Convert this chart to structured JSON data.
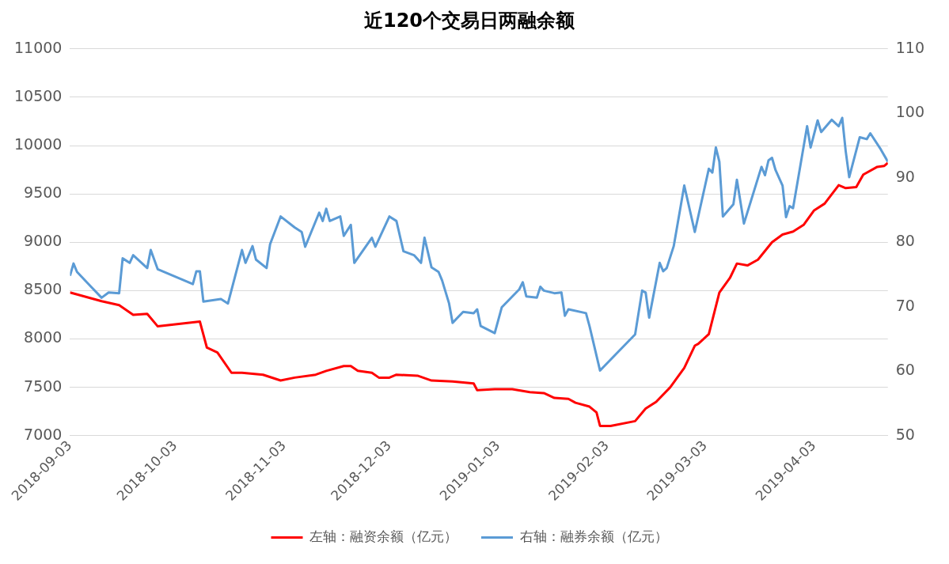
{
  "chart_data": {
    "type": "line",
    "title": "近120个交易日两融余额",
    "marker": "none",
    "grid": "y",
    "legend": "bottom",
    "xlim": [
      "2018-09-03",
      "2019-04-24"
    ],
    "xticks": [
      "2018-09-03",
      "2018-10-03",
      "2018-11-03",
      "2018-12-03",
      "2019-01-03",
      "2019-02-03",
      "2019-03-03",
      "2019-04-03"
    ],
    "ylim": [
      7000,
      11000
    ],
    "yticks": [
      7000,
      7500,
      8000,
      8500,
      9000,
      9500,
      10000,
      10500,
      11000
    ],
    "y2lim": [
      50,
      110
    ],
    "y2ticks": [
      50,
      60,
      70,
      80,
      90,
      100,
      110
    ],
    "series": [
      {
        "name": "左轴：融资余额（亿元）",
        "color": "#ff0000",
        "axis": "y",
        "x": [
          "2018-09-03",
          "2018-09-12",
          "2018-09-17",
          "2018-09-21",
          "2018-09-25",
          "2018-09-28",
          "2018-10-10",
          "2018-10-12",
          "2018-10-15",
          "2018-10-19",
          "2018-10-22",
          "2018-10-28",
          "2018-11-02",
          "2018-11-06",
          "2018-11-12",
          "2018-11-15",
          "2018-11-20",
          "2018-11-22",
          "2018-11-24",
          "2018-11-28",
          "2018-11-30",
          "2018-12-03",
          "2018-12-05",
          "2018-12-11",
          "2018-12-15",
          "2018-12-21",
          "2018-12-27",
          "2018-12-28",
          "2019-01-02",
          "2019-01-07",
          "2019-01-12",
          "2019-01-16",
          "2019-01-19",
          "2019-01-23",
          "2019-01-25",
          "2019-01-29",
          "2019-01-31",
          "2019-02-01",
          "2019-02-04",
          "2019-02-11",
          "2019-02-14",
          "2019-02-17",
          "2019-02-21",
          "2019-02-25",
          "2019-02-28",
          "2019-03-01",
          "2019-03-04",
          "2019-03-07",
          "2019-03-10",
          "2019-03-12",
          "2019-03-15",
          "2019-03-18",
          "2019-03-22",
          "2019-03-25",
          "2019-03-28",
          "2019-03-31",
          "2019-04-03",
          "2019-04-06",
          "2019-04-10",
          "2019-04-12",
          "2019-04-15",
          "2019-04-17",
          "2019-04-21",
          "2019-04-23",
          "2019-04-24"
        ],
        "values": [
          8480,
          8390,
          8350,
          8250,
          8260,
          8130,
          8180,
          7910,
          7860,
          7650,
          7650,
          7630,
          7570,
          7600,
          7630,
          7670,
          7720,
          7720,
          7670,
          7650,
          7600,
          7600,
          7630,
          7620,
          7570,
          7560,
          7540,
          7470,
          7480,
          7480,
          7450,
          7440,
          7390,
          7380,
          7340,
          7300,
          7240,
          7100,
          7100,
          7150,
          7280,
          7350,
          7500,
          7700,
          7930,
          7950,
          8050,
          8480,
          8630,
          8780,
          8760,
          8820,
          9000,
          9080,
          9110,
          9180,
          9330,
          9400,
          9590,
          9560,
          9570,
          9700,
          9780,
          9790,
          9820
        ]
      },
      {
        "name": "右轴：融券余额（亿元）",
        "color": "#5b9bd5",
        "axis": "y2",
        "x": [
          "2018-09-03",
          "2018-09-04",
          "2018-09-05",
          "2018-09-09",
          "2018-09-12",
          "2018-09-14",
          "2018-09-17",
          "2018-09-18",
          "2018-09-20",
          "2018-09-21",
          "2018-09-25",
          "2018-09-26",
          "2018-09-28",
          "2018-10-08",
          "2018-10-09",
          "2018-10-10",
          "2018-10-11",
          "2018-10-16",
          "2018-10-18",
          "2018-10-22",
          "2018-10-23",
          "2018-10-25",
          "2018-10-26",
          "2018-10-29",
          "2018-10-30",
          "2018-11-02",
          "2018-11-06",
          "2018-11-08",
          "2018-11-09",
          "2018-11-13",
          "2018-11-14",
          "2018-11-15",
          "2018-11-16",
          "2018-11-19",
          "2018-11-20",
          "2018-11-22",
          "2018-11-23",
          "2018-11-28",
          "2018-11-29",
          "2018-12-03",
          "2018-12-05",
          "2018-12-07",
          "2018-12-10",
          "2018-12-12",
          "2018-12-13",
          "2018-12-15",
          "2018-12-17",
          "2018-12-18",
          "2018-12-20",
          "2018-12-21",
          "2018-12-24",
          "2018-12-27",
          "2018-12-28",
          "2018-12-29",
          "2019-01-02",
          "2019-01-04",
          "2019-01-09",
          "2019-01-10",
          "2019-01-11",
          "2019-01-14",
          "2019-01-15",
          "2019-01-16",
          "2019-01-19",
          "2019-01-21",
          "2019-01-22",
          "2019-01-23",
          "2019-01-28",
          "2019-01-29",
          "2019-02-01",
          "2019-02-11",
          "2019-02-13",
          "2019-02-14",
          "2019-02-15",
          "2019-02-18",
          "2019-02-19",
          "2019-02-20",
          "2019-02-22",
          "2019-02-25",
          "2019-02-28",
          "2019-03-04",
          "2019-03-05",
          "2019-03-06",
          "2019-03-07",
          "2019-03-08",
          "2019-03-11",
          "2019-03-12",
          "2019-03-14",
          "2019-03-19",
          "2019-03-20",
          "2019-03-21",
          "2019-03-22",
          "2019-03-23",
          "2019-03-25",
          "2019-03-26",
          "2019-03-27",
          "2019-03-28",
          "2019-04-01",
          "2019-04-02",
          "2019-04-04",
          "2019-04-05",
          "2019-04-08",
          "2019-04-10",
          "2019-04-11",
          "2019-04-12",
          "2019-04-13",
          "2019-04-16",
          "2019-04-18",
          "2019-04-19",
          "2019-04-22",
          "2019-04-24"
        ],
        "values": [
          74.8,
          76.7,
          75.4,
          73.1,
          71.4,
          72.2,
          72.1,
          77.5,
          76.8,
          78.0,
          76.0,
          78.8,
          75.8,
          73.5,
          75.5,
          75.5,
          70.8,
          71.2,
          70.5,
          78.8,
          76.8,
          79.4,
          77.3,
          76.0,
          79.7,
          84.0,
          82.3,
          81.6,
          79.3,
          84.6,
          83.3,
          85.2,
          83.3,
          84.0,
          81.0,
          82.7,
          76.8,
          80.7,
          79.3,
          84.0,
          83.3,
          78.6,
          78.0,
          76.8,
          80.7,
          76.1,
          75.4,
          74.1,
          70.5,
          67.5,
          69.2,
          69.0,
          69.6,
          67.0,
          65.9,
          69.9,
          72.7,
          73.8,
          71.6,
          71.4,
          73.1,
          72.5,
          72.1,
          72.2,
          68.6,
          69.6,
          69.0,
          67.0,
          60.1,
          65.7,
          72.5,
          72.2,
          68.3,
          76.8,
          75.5,
          76.0,
          79.4,
          88.8,
          81.6,
          91.4,
          90.8,
          94.7,
          92.5,
          84.0,
          85.9,
          89.7,
          82.9,
          91.7,
          90.4,
          92.7,
          93.1,
          91.2,
          88.8,
          83.9,
          85.6,
          85.3,
          98.0,
          94.7,
          98.9,
          97.1,
          99.0,
          98.0,
          99.3,
          94.1,
          90.1,
          96.3,
          96.0,
          96.9,
          94.4,
          92.5
        ]
      }
    ]
  }
}
